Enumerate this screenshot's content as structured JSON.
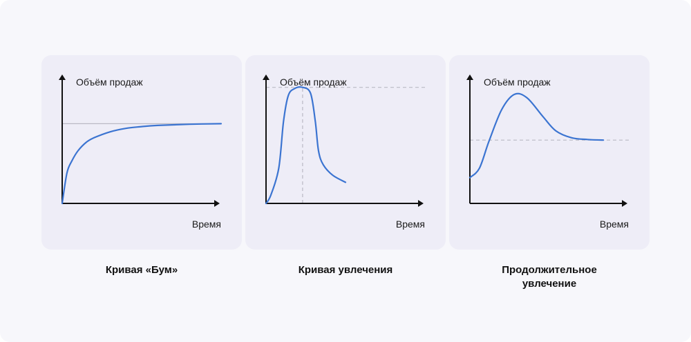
{
  "colors": {
    "curve": "#3b74d1",
    "axis": "#111111",
    "guide": "#b9b9c4",
    "panel": "#eeedf7"
  },
  "chart_data": [
    {
      "type": "line",
      "title": "Кривая «Бум»",
      "xlabel": "Время",
      "ylabel": "Объём продаж",
      "xlim": [
        0,
        10
      ],
      "ylim": [
        0,
        10
      ],
      "grid": false,
      "reference_lines": [
        {
          "orientation": "horizontal",
          "y": 6.8,
          "style": "solid"
        }
      ],
      "series": [
        {
          "x": [
            0,
            0.3,
            0.6,
            1.0,
            1.5,
            2.0,
            3.0,
            4.0,
            5.0,
            6.0,
            8.0,
            10.0
          ],
          "values": [
            0,
            2.6,
            3.6,
            4.5,
            5.2,
            5.6,
            6.1,
            6.4,
            6.55,
            6.65,
            6.75,
            6.8
          ]
        }
      ]
    },
    {
      "type": "line",
      "title": "Кривая увлечения",
      "xlabel": "Время",
      "ylabel": "Объём продаж",
      "xlim": [
        0,
        10
      ],
      "ylim": [
        0,
        10
      ],
      "grid": false,
      "reference_lines": [
        {
          "orientation": "horizontal",
          "y": 9.9,
          "style": "dashed"
        },
        {
          "orientation": "vertical",
          "x": 2.3,
          "style": "dashed"
        }
      ],
      "series": [
        {
          "x": [
            0,
            0.3,
            0.8,
            1.1,
            1.4,
            1.8,
            2.3,
            2.8,
            3.1,
            3.3,
            3.6,
            4.2,
            5.0
          ],
          "values": [
            0,
            0.7,
            3.0,
            7.0,
            9.2,
            9.8,
            9.9,
            9.4,
            7.0,
            4.5,
            3.3,
            2.4,
            1.8
          ]
        }
      ]
    },
    {
      "type": "line",
      "title": "Продолжительное увлечение",
      "xlabel": "Время",
      "ylabel": "Объём продаж",
      "xlim": [
        0,
        10
      ],
      "ylim": [
        0,
        10
      ],
      "grid": false,
      "reference_lines": [
        {
          "orientation": "horizontal",
          "y": 5.4,
          "style": "dashed"
        }
      ],
      "series": [
        {
          "x": [
            0,
            0.6,
            1.2,
            2.0,
            2.8,
            3.6,
            4.6,
            5.4,
            6.4,
            7.4,
            8.4
          ],
          "values": [
            2.2,
            3.0,
            5.3,
            8.0,
            9.3,
            9.0,
            7.4,
            6.2,
            5.6,
            5.45,
            5.4
          ]
        }
      ]
    }
  ]
}
